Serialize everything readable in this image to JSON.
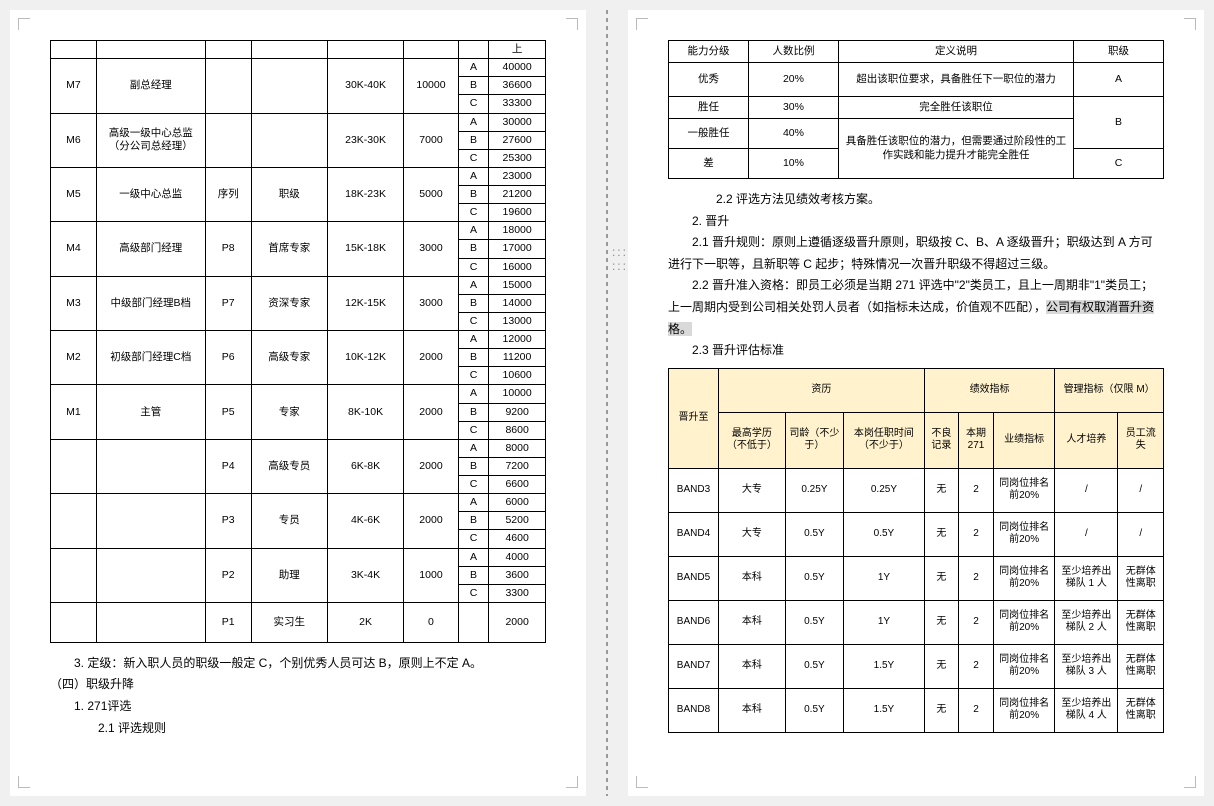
{
  "salaryTable": {
    "topRight": "上",
    "rows": [
      {
        "m": "M7",
        "mTitle": "副总经理",
        "p": "",
        "pTitle": "",
        "range": "30K-40K",
        "step": "10000",
        "a": "40000",
        "b": "36600",
        "c": "33300"
      },
      {
        "m": "M6",
        "mTitle": "高级一级中心总监（分公司总经理）",
        "p": "",
        "pTitle": "",
        "range": "23K-30K",
        "step": "7000",
        "a": "30000",
        "b": "27600",
        "c": "25300"
      },
      {
        "m": "M5",
        "mTitle": "一级中心总监",
        "p": "序列",
        "pTitle": "职级",
        "range": "18K-23K",
        "step": "5000",
        "a": "23000",
        "b": "21200",
        "c": "19600"
      },
      {
        "m": "M4",
        "mTitle": "高级部门经理",
        "p": "P8",
        "pTitle": "首席专家",
        "range": "15K-18K",
        "step": "3000",
        "a": "18000",
        "b": "17000",
        "c": "16000"
      },
      {
        "m": "M3",
        "mTitle": "中级部门经理B档",
        "p": "P7",
        "pTitle": "资深专家",
        "range": "12K-15K",
        "step": "3000",
        "a": "15000",
        "b": "14000",
        "c": "13000"
      },
      {
        "m": "M2",
        "mTitle": "初级部门经理C档",
        "p": "P6",
        "pTitle": "高级专家",
        "range": "10K-12K",
        "step": "2000",
        "a": "12000",
        "b": "11200",
        "c": "10600"
      },
      {
        "m": "M1",
        "mTitle": "主管",
        "p": "P5",
        "pTitle": "专家",
        "range": "8K-10K",
        "step": "2000",
        "a": "10000",
        "b": "9200",
        "c": "8600"
      },
      {
        "m": "",
        "mTitle": "",
        "p": "P4",
        "pTitle": "高级专员",
        "range": "6K-8K",
        "step": "2000",
        "a": "8000",
        "b": "7200",
        "c": "6600"
      },
      {
        "m": "",
        "mTitle": "",
        "p": "P3",
        "pTitle": "专员",
        "range": "4K-6K",
        "step": "2000",
        "a": "6000",
        "b": "5200",
        "c": "4600"
      },
      {
        "m": "",
        "mTitle": "",
        "p": "P2",
        "pTitle": "助理",
        "range": "3K-4K",
        "step": "1000",
        "a": "4000",
        "b": "3600",
        "c": "3300"
      }
    ],
    "last": {
      "p": "P1",
      "pTitle": "实习生",
      "range": "2K",
      "step": "0",
      "val": "2000"
    }
  },
  "leftText": {
    "p1": "3.  定级：新入职人员的职级一般定 C，个别优秀人员可达 B，原则上不定 A。",
    "p2": "（四）职级升降",
    "p3": "1.  271评选",
    "p4": "2.1 评选规则"
  },
  "capTable": {
    "head": [
      "能力分级",
      "人数比例",
      "定义说明",
      "职级"
    ],
    "rows": [
      [
        "优秀",
        "20%",
        "超出该职位要求，具备胜任下一职位的潜力",
        "A"
      ],
      [
        "胜任",
        "30%",
        "完全胜任该职位",
        "B_top"
      ],
      [
        "一般胜任",
        "40%",
        "具备胜任该职位的潜力，但需要通过阶段性的工作实践和能力提升才能完全胜任",
        "B_bot"
      ],
      [
        "差",
        "10%",
        "",
        "C"
      ]
    ]
  },
  "rightText": {
    "p1": "2.2 评选方法见绩效考核方案。",
    "p2": "2.  晋升",
    "p3": "2.1 晋升规则：原则上遵循逐级晋升原则，职级按 C、B、A 逐级晋升；职级达到 A 方可进行下一职等，且新职等 C 起步；特殊情况一次晋升职级不得超过三级。",
    "p4a": "2.2 晋升准入资格：即员工必须是当期 271 评选中\"2\"类员工，且上一周期非\"1\"类员工；上一周期内受到公司相关处罚人员者（如指标未达成，价值观不匹配），",
    "p4b": "公司有权取消晋升资格。",
    "p5": "2.3 晋升评估标准"
  },
  "promo": {
    "groupHead": [
      "",
      "资历",
      "绩效指标",
      "管理指标（仅限 M）"
    ],
    "subHead": [
      "晋升至",
      "最高学历（不低于）",
      "司龄（不少于）",
      "本岗任职时间（不少于）",
      "不良记录",
      "本期271",
      "业绩指标",
      "人才培养",
      "员工流失"
    ],
    "rows": [
      [
        "BAND3",
        "大专",
        "0.25Y",
        "0.25Y",
        "无",
        "2",
        "同岗位排名前20%",
        "/",
        "/"
      ],
      [
        "BAND4",
        "大专",
        "0.5Y",
        "0.5Y",
        "无",
        "2",
        "同岗位排名前20%",
        "/",
        "/"
      ],
      [
        "BAND5",
        "本科",
        "0.5Y",
        "1Y",
        "无",
        "2",
        "同岗位排名前20%",
        "至少培养出梯队 1 人",
        "无群体性离职"
      ],
      [
        "BAND6",
        "本科",
        "0.5Y",
        "1Y",
        "无",
        "2",
        "同岗位排名前20%",
        "至少培养出梯队 2 人",
        "无群体性离职"
      ],
      [
        "BAND7",
        "本科",
        "0.5Y",
        "1.5Y",
        "无",
        "2",
        "同岗位排名前20%",
        "至少培养出梯队 3 人",
        "无群体性离职"
      ],
      [
        "BAND8",
        "本科",
        "0.5Y",
        "1.5Y",
        "无",
        "2",
        "同岗位排名前20%",
        "至少培养出梯队 4 人",
        "无群体性离职"
      ]
    ]
  }
}
